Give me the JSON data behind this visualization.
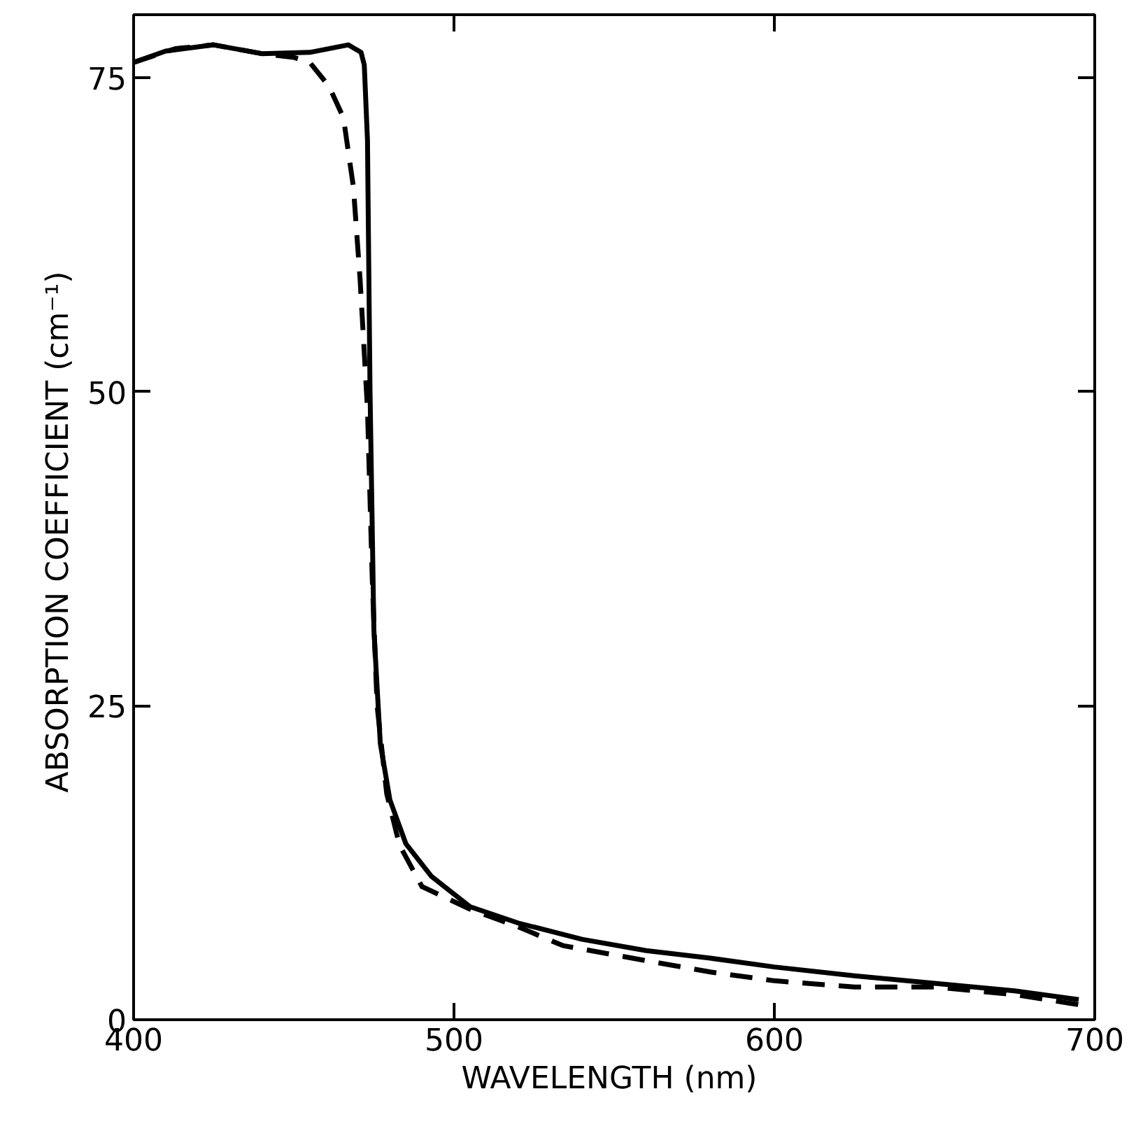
{
  "chart_data": {
    "type": "line",
    "xlabel": "WAVELENGTH  (nm)",
    "ylabel": "ABSORPTION  COEFFICIENT   (cm⁻¹)",
    "xlim": [
      400,
      700
    ],
    "ylim": [
      0,
      80
    ],
    "xticks": [
      400,
      500,
      600,
      700
    ],
    "yticks": [
      0,
      25,
      50,
      75
    ],
    "grid": false,
    "series": [
      {
        "color": "#000000",
        "line_style": "solid",
        "x": [
          400,
          410,
          425,
          440,
          455,
          467,
          471,
          472,
          473,
          473.8,
          475,
          477,
          480,
          485,
          493,
          505,
          520,
          540,
          560,
          580,
          600,
          625,
          650,
          675,
          695
        ],
        "values": [
          76.2,
          77.1,
          77.6,
          76.9,
          77.0,
          77.6,
          77.0,
          76.0,
          70,
          50,
          31,
          22,
          17.5,
          14,
          11.4,
          9.0,
          7.7,
          6.4,
          5.5,
          4.9,
          4.2,
          3.5,
          2.9,
          2.3,
          1.6
        ]
      },
      {
        "color": "#000000",
        "line_style": "dashed",
        "x": [
          400,
          413,
          425,
          440,
          450,
          455,
          461,
          465.5,
          468.6,
          470.7,
          473,
          474.5,
          476,
          479,
          483,
          490,
          505,
          520,
          534,
          560,
          580,
          600,
          625,
          650,
          675,
          695
        ],
        "values": [
          76.2,
          77.3,
          77.6,
          76.9,
          76.6,
          76.2,
          74.3,
          71.8,
          66.3,
          58.9,
          48.6,
          35,
          25,
          18,
          13.9,
          10.6,
          8.8,
          7.4,
          5.9,
          4.7,
          3.8,
          3.1,
          2.6,
          2.6,
          2.0,
          1.2
        ]
      }
    ]
  }
}
